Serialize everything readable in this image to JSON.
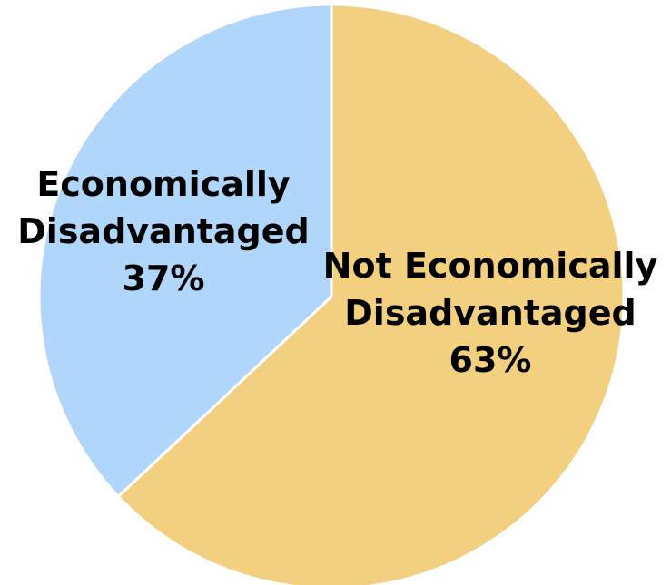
{
  "chart_data": {
    "type": "pie",
    "start_angle_deg": 0,
    "direction": "clockwise",
    "slices": [
      {
        "label_lines": [
          "Not Economically",
          "Disadvantaged",
          "63%"
        ],
        "category": "Not Economically Disadvantaged",
        "value": 63,
        "value_label": "63%",
        "color": "#F3D07F"
      },
      {
        "label_lines": [
          "Economically",
          "Disadvantaged",
          "37%"
        ],
        "category": "Economically Disadvantaged",
        "value": 37,
        "value_label": "37%",
        "color": "#B0D6FB"
      }
    ],
    "separator_color": "#FFFFFF",
    "legend": "none"
  }
}
